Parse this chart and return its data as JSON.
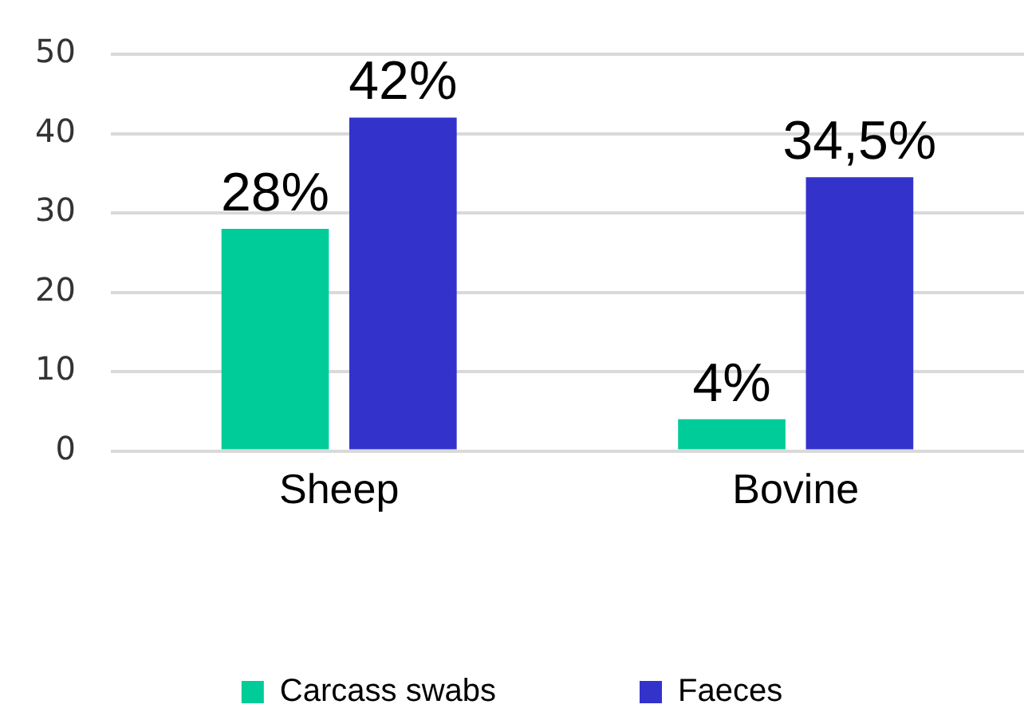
{
  "chart_data": {
    "type": "bar",
    "categories": [
      "Sheep",
      "Bovine"
    ],
    "series": [
      {
        "name": "Carcass swabs",
        "color": "#00cc99",
        "values": [
          28,
          4
        ],
        "value_labels": [
          "28%",
          "4%"
        ]
      },
      {
        "name": "Faeces",
        "color": "#3333cc",
        "values": [
          42,
          34.5
        ],
        "value_labels": [
          "42%",
          "34,5%"
        ]
      }
    ],
    "ylim": [
      0,
      50
    ],
    "yticks": [
      0,
      10,
      20,
      30,
      40,
      50
    ],
    "grid": "y",
    "legend": "bottom"
  }
}
